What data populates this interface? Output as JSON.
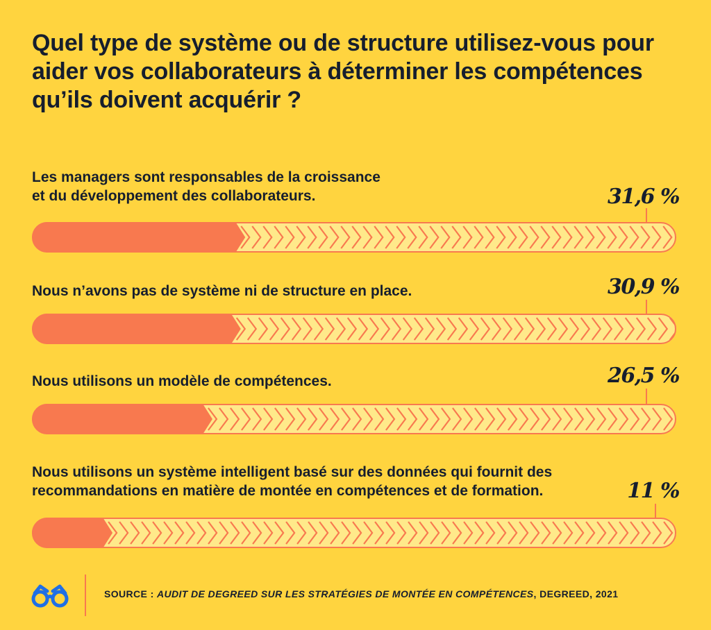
{
  "title": "Quel type de système ou de structure utilisez-vous pour aider vos collaborateurs à déterminer les compétences qu’ils doivent acquérir ?",
  "colors": {
    "background": "#FFD43F",
    "bar_fill": "#F8794F",
    "bar_track": "#FFE98A",
    "text": "#161E2E",
    "logo": "#1F6FE5"
  },
  "logo_icon": "glasses-icon",
  "footer": {
    "prefix": "SOURCE : ",
    "source_italic": "AUDIT DE DEGREED SUR LES STRATÉGIES DE MONTÉE EN COMPÉTENCES",
    "suffix": ", DEGREED, 2021"
  },
  "chart_data": {
    "type": "bar",
    "orientation": "horizontal",
    "unit": "%",
    "xlim": [
      0,
      100
    ],
    "categories": [
      "Les managers sont responsables de la croissance\net du développement des collaborateurs.",
      "Nous n’avons pas de système ni de structure en place.",
      "Nous utilisons un modèle de compétences.",
      "Nous utilisons un système intelligent basé sur des données qui fournit des\nrecommandations en matière de montée en compétences et de formation."
    ],
    "values": [
      31.6,
      30.9,
      26.5,
      11
    ],
    "value_labels": [
      "31,6 %",
      "30,9 %",
      "26,5 %",
      "11 %"
    ]
  }
}
